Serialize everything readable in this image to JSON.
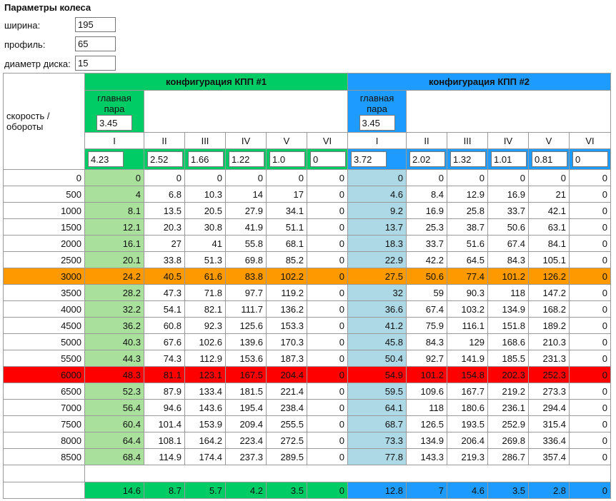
{
  "header": {
    "title": "Параметры колеса"
  },
  "fields": [
    {
      "label": "ширина:",
      "value": "195"
    },
    {
      "label": "профиль:",
      "value": "65"
    },
    {
      "label": "диаметр диска:",
      "value": "15"
    }
  ],
  "table": {
    "corner_label": "скорость / обороты",
    "configs": [
      {
        "title": "конфигурация КПП #1",
        "color": "#00cc66",
        "light_color": "#a9e09c",
        "main_pair_label": "главная пара",
        "main_pair": "3.45",
        "gears": [
          "I",
          "II",
          "III",
          "IV",
          "V",
          "VI"
        ],
        "ratios": [
          "4.23",
          "2.52",
          "1.66",
          "1.22",
          "1.0",
          "0"
        ],
        "totals": [
          14.6,
          8.7,
          5.7,
          4.2,
          3.5,
          0
        ]
      },
      {
        "title": "конфигурация КПП #2",
        "color": "#1e9bff",
        "light_color": "#add8e6",
        "main_pair_label": "главная пара",
        "main_pair": "3.45",
        "gears": [
          "I",
          "II",
          "III",
          "IV",
          "V",
          "VI"
        ],
        "ratios": [
          "3.72",
          "2.02",
          "1.32",
          "1.01",
          "0.81",
          "0"
        ],
        "totals": [
          12.8,
          7,
          4.6,
          3.5,
          2.8,
          0
        ]
      }
    ],
    "rows": [
      {
        "rpm": 0,
        "values": [
          [
            0,
            0,
            0,
            0,
            0,
            0
          ],
          [
            0,
            0,
            0,
            0,
            0,
            0
          ]
        ]
      },
      {
        "rpm": 500,
        "values": [
          [
            4,
            6.8,
            10.3,
            14,
            17,
            0
          ],
          [
            4.6,
            8.4,
            12.9,
            16.9,
            21,
            0
          ]
        ]
      },
      {
        "rpm": 1000,
        "values": [
          [
            8.1,
            13.5,
            20.5,
            27.9,
            34.1,
            0
          ],
          [
            9.2,
            16.9,
            25.8,
            33.7,
            42.1,
            0
          ]
        ]
      },
      {
        "rpm": 1500,
        "values": [
          [
            12.1,
            20.3,
            30.8,
            41.9,
            51.1,
            0
          ],
          [
            13.7,
            25.3,
            38.7,
            50.6,
            63.1,
            0
          ]
        ]
      },
      {
        "rpm": 2000,
        "values": [
          [
            16.1,
            27,
            41,
            55.8,
            68.1,
            0
          ],
          [
            18.3,
            33.7,
            51.6,
            67.4,
            84.1,
            0
          ]
        ]
      },
      {
        "rpm": 2500,
        "values": [
          [
            20.1,
            33.8,
            51.3,
            69.8,
            85.2,
            0
          ],
          [
            22.9,
            42.2,
            64.5,
            84.3,
            105.1,
            0
          ]
        ]
      },
      {
        "rpm": 3000,
        "highlight": "#ff9900",
        "values": [
          [
            24.2,
            40.5,
            61.6,
            83.8,
            102.2,
            0
          ],
          [
            27.5,
            50.6,
            77.4,
            101.2,
            126.2,
            0
          ]
        ]
      },
      {
        "rpm": 3500,
        "values": [
          [
            28.2,
            47.3,
            71.8,
            97.7,
            119.2,
            0
          ],
          [
            32,
            59,
            90.3,
            118,
            147.2,
            0
          ]
        ]
      },
      {
        "rpm": 4000,
        "values": [
          [
            32.2,
            54.1,
            82.1,
            111.7,
            136.2,
            0
          ],
          [
            36.6,
            67.4,
            103.2,
            134.9,
            168.2,
            0
          ]
        ]
      },
      {
        "rpm": 4500,
        "values": [
          [
            36.2,
            60.8,
            92.3,
            125.6,
            153.3,
            0
          ],
          [
            41.2,
            75.9,
            116.1,
            151.8,
            189.2,
            0
          ]
        ]
      },
      {
        "rpm": 5000,
        "values": [
          [
            40.3,
            67.6,
            102.6,
            139.6,
            170.3,
            0
          ],
          [
            45.8,
            84.3,
            129,
            168.6,
            210.3,
            0
          ]
        ]
      },
      {
        "rpm": 5500,
        "values": [
          [
            44.3,
            74.3,
            112.9,
            153.6,
            187.3,
            0
          ],
          [
            50.4,
            92.7,
            141.9,
            185.5,
            231.3,
            0
          ]
        ]
      },
      {
        "rpm": 6000,
        "highlight": "#ff0000",
        "values": [
          [
            48.3,
            81.1,
            123.1,
            167.5,
            204.4,
            0
          ],
          [
            54.9,
            101.2,
            154.8,
            202.3,
            252.3,
            0
          ]
        ]
      },
      {
        "rpm": 6500,
        "values": [
          [
            52.3,
            87.9,
            133.4,
            181.5,
            221.4,
            0
          ],
          [
            59.5,
            109.6,
            167.7,
            219.2,
            273.3,
            0
          ]
        ]
      },
      {
        "rpm": 7000,
        "values": [
          [
            56.4,
            94.6,
            143.6,
            195.4,
            238.4,
            0
          ],
          [
            64.1,
            118,
            180.6,
            236.1,
            294.4,
            0
          ]
        ]
      },
      {
        "rpm": 7500,
        "values": [
          [
            60.4,
            101.4,
            153.9,
            209.4,
            255.5,
            0
          ],
          [
            68.7,
            126.5,
            193.5,
            252.9,
            315.4,
            0
          ]
        ]
      },
      {
        "rpm": 8000,
        "values": [
          [
            64.4,
            108.1,
            164.2,
            223.4,
            272.5,
            0
          ],
          [
            73.3,
            134.9,
            206.4,
            269.8,
            336.4,
            0
          ]
        ]
      },
      {
        "rpm": 8500,
        "values": [
          [
            68.4,
            114.9,
            174.4,
            237.3,
            289.5,
            0
          ],
          [
            77.8,
            143.3,
            219.3,
            286.7,
            357.4,
            0
          ]
        ]
      }
    ]
  }
}
